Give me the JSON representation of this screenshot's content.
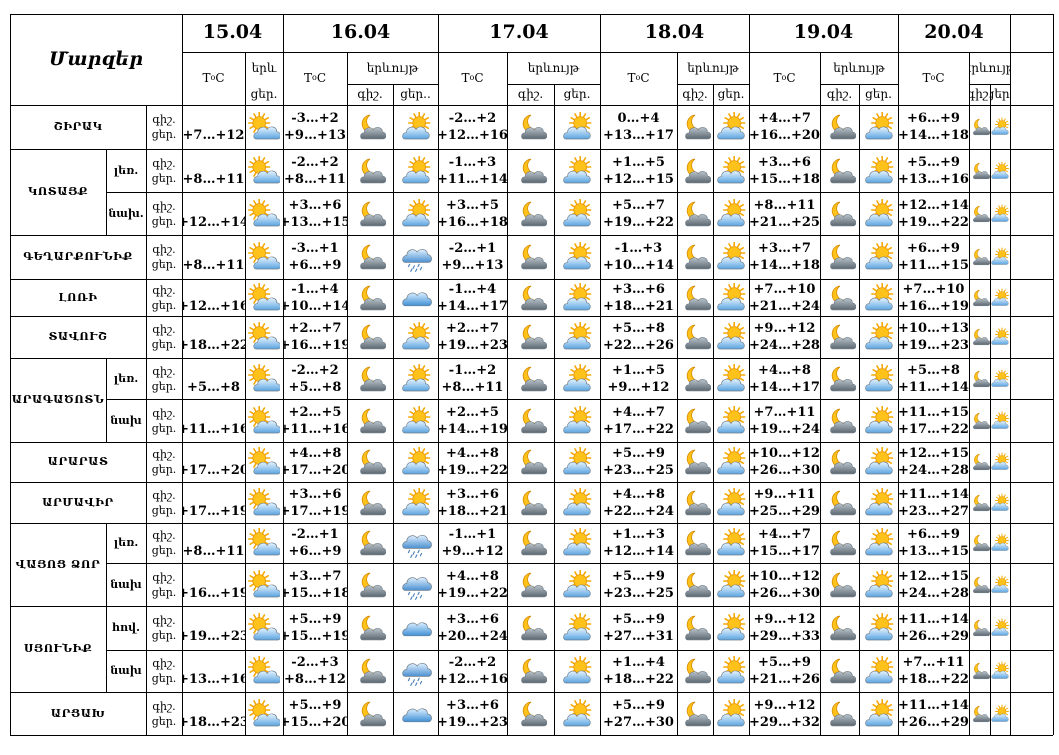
{
  "header": {
    "marzer": "Մարզեր",
    "temp_label": "T°C",
    "weather_label": "երևույթ",
    "weather_label_short": "երև",
    "night": "գիշ.",
    "day": "ցեր.",
    "day_trunc": "ցեր..",
    "dates": [
      "15.04",
      "16.04",
      "17.04",
      "18.04",
      "19.04",
      "20.04"
    ]
  },
  "groups": [
    {
      "name": "ՇԻՐԱԿ",
      "rows": [
        {
          "sub": "",
          "t": [
            [
              "",
              "+7…+12"
            ],
            [
              "-3…+2",
              "+9…+13"
            ],
            [
              "-2…+2",
              "+12…+16"
            ],
            [
              "0…+4",
              "+13…+17"
            ],
            [
              "+4…+7",
              "+16…+20"
            ],
            [
              "+6…+9",
              "+14…+18"
            ]
          ],
          "w": [
            "sun-cloud",
            [
              "moon-cloud",
              "cloud-sun"
            ],
            [
              "moon-cloud",
              "cloud-sun"
            ],
            [
              "moon-cloud",
              "cloud-sun"
            ],
            [
              "moon-cloud",
              "cloud-sun"
            ],
            [
              "moon-cloud",
              "cloud-sun"
            ]
          ]
        }
      ]
    },
    {
      "name": "ԿՈՏԱՅՔ",
      "rows": [
        {
          "sub": "լեռ.",
          "t": [
            [
              "",
              "+8…+11"
            ],
            [
              "-2…+2",
              "+8…+11"
            ],
            [
              "-1…+3",
              "+11…+14"
            ],
            [
              "+1…+5",
              "+12…+15"
            ],
            [
              "+3…+6",
              "+15…+18"
            ],
            [
              "+5…+9",
              "+13…+16"
            ]
          ],
          "w": [
            "sun-cloud",
            [
              "moon-cloud",
              "cloud-sun"
            ],
            [
              "moon-cloud",
              "cloud-sun"
            ],
            [
              "moon-cloud",
              "cloud-sun"
            ],
            [
              "moon-cloud",
              "cloud-sun"
            ],
            [
              "moon-cloud",
              "cloud-sun"
            ]
          ]
        },
        {
          "sub": "նախ.",
          "t": [
            [
              "",
              "+12…+14"
            ],
            [
              "+3…+6",
              "+13…+15"
            ],
            [
              "+3…+5",
              "+16…+18"
            ],
            [
              "+5…+7",
              "+19…+22"
            ],
            [
              "+8…+11",
              "+21…+25"
            ],
            [
              "+12…+14",
              "+19…+22"
            ]
          ],
          "w": [
            "sun-cloud",
            [
              "moon-cloud",
              "cloud-sun"
            ],
            [
              "moon-cloud",
              "cloud-sun"
            ],
            [
              "moon-cloud",
              "cloud-sun"
            ],
            [
              "moon-cloud",
              "cloud-sun"
            ],
            [
              "moon-cloud",
              "cloud-sun"
            ]
          ]
        }
      ]
    },
    {
      "name": "ԳԵՂԱՐՔՈՒՆԻՔ",
      "rows": [
        {
          "sub": "",
          "t": [
            [
              "",
              "+8…+11"
            ],
            [
              "-3…+1",
              "+6…+9"
            ],
            [
              "-2…+1",
              "+9…+13"
            ],
            [
              "-1…+3",
              "+10…+14"
            ],
            [
              "+3…+7",
              "+14…+18"
            ],
            [
              "+6…+9",
              "+11…+15"
            ]
          ],
          "w": [
            "sun-cloud",
            [
              "moon-cloud",
              "rain"
            ],
            [
              "moon-cloud",
              "cloud-sun"
            ],
            [
              "moon-cloud",
              "cloud-sun"
            ],
            [
              "moon-cloud",
              "cloud-sun"
            ],
            [
              "moon-cloud",
              "cloud-sun"
            ]
          ]
        }
      ]
    },
    {
      "name": "ԼՈՌԻ",
      "rows": [
        {
          "sub": "",
          "t": [
            [
              "",
              "+12…+16"
            ],
            [
              "-1…+4",
              "+10…+14"
            ],
            [
              "-1…+4",
              "+14…+17"
            ],
            [
              "+3…+6",
              "+18…+21"
            ],
            [
              "+7…+10",
              "+21…+24"
            ],
            [
              "+7…+10",
              "+16…+19"
            ]
          ],
          "w": [
            "sun-cloud",
            [
              "moon-cloud",
              "cloud"
            ],
            [
              "moon-cloud",
              "cloud-sun"
            ],
            [
              "moon-cloud",
              "cloud-sun"
            ],
            [
              "moon-cloud",
              "cloud-sun"
            ],
            [
              "moon-cloud",
              "cloud-sun"
            ]
          ]
        }
      ]
    },
    {
      "name": "ՏԱՎՈՒՇ",
      "rows": [
        {
          "sub": "",
          "t": [
            [
              "",
              "+18…+22"
            ],
            [
              "+2…+7",
              "+16…+19"
            ],
            [
              "+2…+7",
              "+19…+23"
            ],
            [
              "+5…+8",
              "+22…+26"
            ],
            [
              "+9…+12",
              "+24…+28"
            ],
            [
              "+10…+13",
              "+19…+23"
            ]
          ],
          "w": [
            "sun-cloud",
            [
              "moon-cloud",
              "cloud-sun"
            ],
            [
              "moon-cloud",
              "cloud-sun"
            ],
            [
              "moon-cloud",
              "cloud-sun"
            ],
            [
              "moon-cloud",
              "cloud-sun"
            ],
            [
              "moon-cloud",
              "cloud-sun"
            ]
          ]
        }
      ]
    },
    {
      "name": "ԱՐԱԳԱԾՈՏՆ",
      "rows": [
        {
          "sub": "լեռ.",
          "t": [
            [
              "",
              "+5…+8"
            ],
            [
              "-2…+2",
              "+5…+8"
            ],
            [
              "-1…+2",
              "+8…+11"
            ],
            [
              "+1…+5",
              "+9…+12"
            ],
            [
              "+4…+8",
              "+14…+17"
            ],
            [
              "+5…+8",
              "+11…+14"
            ]
          ],
          "w": [
            "sun-cloud",
            [
              "moon-cloud",
              "cloud-sun"
            ],
            [
              "moon-cloud",
              "cloud-sun"
            ],
            [
              "moon-cloud",
              "cloud-sun"
            ],
            [
              "moon-cloud",
              "cloud-sun"
            ],
            [
              "moon-cloud",
              "cloud-sun"
            ]
          ]
        },
        {
          "sub": "նախ",
          "t": [
            [
              "",
              "+11…+16"
            ],
            [
              "+2…+5",
              "+11…+16"
            ],
            [
              "+2…+5",
              "+14…+19"
            ],
            [
              "+4…+7",
              "+17…+22"
            ],
            [
              "+7…+11",
              "+19…+24"
            ],
            [
              "+11…+15",
              "+17…+22"
            ]
          ],
          "w": [
            "sun-cloud",
            [
              "moon-cloud",
              "cloud-sun"
            ],
            [
              "moon-cloud",
              "cloud-sun"
            ],
            [
              "moon-cloud",
              "cloud-sun"
            ],
            [
              "moon-cloud",
              "cloud-sun"
            ],
            [
              "moon-cloud",
              "cloud-sun"
            ]
          ]
        }
      ]
    },
    {
      "name": "ԱՐԱՐԱՏ",
      "rows": [
        {
          "sub": "",
          "t": [
            [
              "",
              "+17…+20"
            ],
            [
              "+4…+8",
              "+17…+20"
            ],
            [
              "+4…+8",
              "+19…+22"
            ],
            [
              "+5…+9",
              "+23…+25"
            ],
            [
              "+10…+12",
              "+26…+30"
            ],
            [
              "+12…+15",
              "+24…+28"
            ]
          ],
          "w": [
            "sun-cloud",
            [
              "moon-cloud",
              "cloud-sun"
            ],
            [
              "moon-cloud",
              "cloud-sun"
            ],
            [
              "moon-cloud",
              "cloud-sun"
            ],
            [
              "moon-cloud",
              "cloud-sun"
            ],
            [
              "moon-cloud",
              "cloud-sun"
            ]
          ]
        }
      ]
    },
    {
      "name": "ԱՐՄԱՎԻՐ",
      "rows": [
        {
          "sub": "",
          "t": [
            [
              "",
              "+17…+19"
            ],
            [
              "+3…+6",
              "+17…+19"
            ],
            [
              "+3…+6",
              "+18…+21"
            ],
            [
              "+4…+8",
              "+22…+24"
            ],
            [
              "+9…+11",
              "+25…+29"
            ],
            [
              "+11…+14",
              "+23…+27"
            ]
          ],
          "w": [
            "sun-cloud",
            [
              "moon-cloud",
              "cloud-sun"
            ],
            [
              "moon-cloud",
              "cloud-sun"
            ],
            [
              "moon-cloud",
              "cloud-sun"
            ],
            [
              "moon-cloud",
              "cloud-sun"
            ],
            [
              "moon-cloud",
              "cloud-sun"
            ]
          ]
        }
      ]
    },
    {
      "name": "ՎԱՅՈՑ ՁՈՐ",
      "rows": [
        {
          "sub": "լեռ.",
          "t": [
            [
              "",
              "+8…+11"
            ],
            [
              "-2…+1",
              "+6…+9"
            ],
            [
              "-1…+1",
              "+9…+12"
            ],
            [
              "+1…+3",
              "+12…+14"
            ],
            [
              "+4…+7",
              "+15…+17"
            ],
            [
              "+6…+9",
              "+13…+15"
            ]
          ],
          "w": [
            "sun-cloud",
            [
              "moon-cloud",
              "rain"
            ],
            [
              "moon-cloud",
              "cloud-sun"
            ],
            [
              "moon-cloud",
              "cloud-sun"
            ],
            [
              "moon-cloud",
              "cloud-sun"
            ],
            [
              "moon-cloud",
              "cloud-sun"
            ]
          ]
        },
        {
          "sub": "նախ",
          "t": [
            [
              "",
              "+16…+19"
            ],
            [
              "+3…+7",
              "+15…+18"
            ],
            [
              "+4…+8",
              "+19…+22"
            ],
            [
              "+5…+9",
              "+23…+25"
            ],
            [
              "+10…+12",
              "+26…+30"
            ],
            [
              "+12…+15",
              "+24…+28"
            ]
          ],
          "w": [
            "sun-cloud",
            [
              "moon-cloud",
              "rain"
            ],
            [
              "moon-cloud",
              "cloud-sun"
            ],
            [
              "moon-cloud",
              "cloud-sun"
            ],
            [
              "moon-cloud",
              "cloud-sun"
            ],
            [
              "moon-cloud",
              "cloud-sun"
            ]
          ]
        }
      ]
    },
    {
      "name": "ՍՅՈՒՆԻՔ",
      "rows": [
        {
          "sub": "hով.",
          "t": [
            [
              "",
              "+19…+23"
            ],
            [
              "+5…+9",
              "+15…+19"
            ],
            [
              "+3…+6",
              "+20…+24"
            ],
            [
              "+5…+9",
              "+27…+31"
            ],
            [
              "+9…+12",
              "+29…+33"
            ],
            [
              "+11…+14",
              "+26…+29"
            ]
          ],
          "w": [
            "sun-cloud",
            [
              "moon-cloud",
              "cloud"
            ],
            [
              "moon-cloud",
              "cloud-sun"
            ],
            [
              "moon-cloud",
              "cloud-sun"
            ],
            [
              "moon-cloud",
              "cloud-sun"
            ],
            [
              "moon-cloud",
              "cloud-sun"
            ]
          ]
        },
        {
          "sub": "նախ",
          "t": [
            [
              "",
              "+13…+16"
            ],
            [
              "-2…+3",
              "+8…+12"
            ],
            [
              "-2…+2",
              "+12…+16"
            ],
            [
              "+1…+4",
              "+18…+22"
            ],
            [
              "+5…+9",
              "+21…+26"
            ],
            [
              "+7…+11",
              "+18…+22"
            ]
          ],
          "w": [
            "sun-cloud",
            [
              "moon-cloud",
              "rain"
            ],
            [
              "moon-cloud",
              "cloud-sun"
            ],
            [
              "moon-cloud",
              "cloud-sun"
            ],
            [
              "moon-cloud",
              "cloud-sun"
            ],
            [
              "moon-cloud",
              "cloud-sun"
            ]
          ]
        }
      ]
    },
    {
      "name": "ԱՐՑԱԽ",
      "rows": [
        {
          "sub": "",
          "t": [
            [
              "",
              "+18…+23"
            ],
            [
              "+5…+9",
              "+15…+20"
            ],
            [
              "+3…+6",
              "+19…+23"
            ],
            [
              "+5…+9",
              "+27…+30"
            ],
            [
              "+9…+12",
              "+29…+32"
            ],
            [
              "+11…+14",
              "+26…+29"
            ]
          ],
          "w": [
            "sun-cloud",
            [
              "moon-cloud",
              "cloud"
            ],
            [
              "moon-cloud",
              "cloud-sun"
            ],
            [
              "moon-cloud",
              "cloud-sun"
            ],
            [
              "moon-cloud",
              "cloud-sun"
            ],
            [
              "moon-cloud",
              "cloud-sun"
            ]
          ]
        }
      ]
    }
  ]
}
